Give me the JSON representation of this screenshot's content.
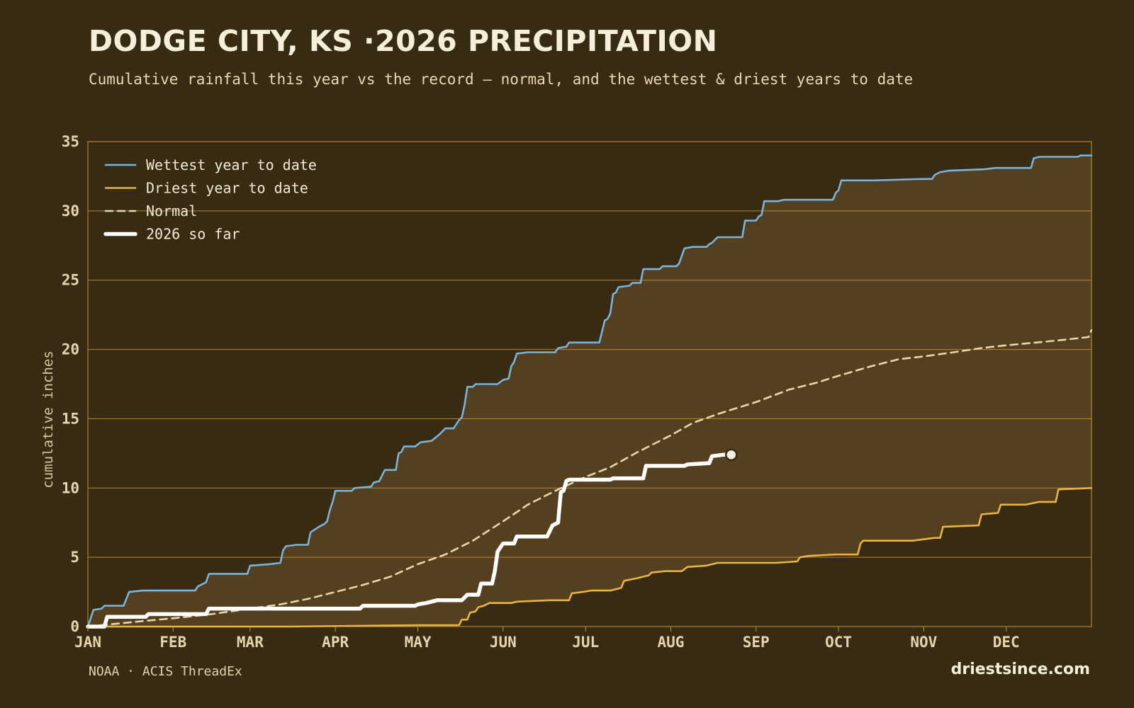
{
  "header": {
    "title": "DODGE CITY, KS ·2026 PRECIPITATION",
    "subtitle": "Cumulative rainfall this year vs the record — normal, and the wettest & driest years to date"
  },
  "footer": {
    "source": "NOAA · ACIS ThreadEx",
    "brand": "driestsince.com"
  },
  "colors": {
    "background": "#382b13",
    "band": "#54401f",
    "grid": "#c8962f",
    "wettest": "#78b4dc",
    "driest": "#e8b440",
    "normal": "#e6d6ae",
    "current": "#ffffff"
  },
  "chart_data": {
    "type": "line",
    "title": "DODGE CITY, KS ·2026 PRECIPITATION",
    "ylabel": "cumulative inches",
    "xlabel": "",
    "xlim": [
      0,
      365
    ],
    "ylim": [
      0,
      35
    ],
    "grid": true,
    "legend_position": "top-left",
    "x_ticks": [
      {
        "label": "JAN",
        "day": 0
      },
      {
        "label": "FEB",
        "day": 31
      },
      {
        "label": "MAR",
        "day": 59
      },
      {
        "label": "APR",
        "day": 90
      },
      {
        "label": "MAY",
        "day": 120
      },
      {
        "label": "JUN",
        "day": 151
      },
      {
        "label": "JUL",
        "day": 181
      },
      {
        "label": "AUG",
        "day": 212
      },
      {
        "label": "SEP",
        "day": 243
      },
      {
        "label": "OCT",
        "day": 273
      },
      {
        "label": "NOV",
        "day": 304
      },
      {
        "label": "DEC",
        "day": 334
      }
    ],
    "y_ticks": [
      0,
      5,
      10,
      15,
      20,
      25,
      30,
      35
    ],
    "series": [
      {
        "name": "Wettest year to date",
        "style": "solid",
        "color": "#78b4dc",
        "points": [
          [
            0,
            0
          ],
          [
            2,
            1.2
          ],
          [
            5,
            1.3
          ],
          [
            6,
            1.5
          ],
          [
            13,
            1.5
          ],
          [
            15,
            2.5
          ],
          [
            20,
            2.6
          ],
          [
            39,
            2.6
          ],
          [
            40,
            2.9
          ],
          [
            41,
            3.0
          ],
          [
            43,
            3.2
          ],
          [
            44,
            3.8
          ],
          [
            58,
            3.8
          ],
          [
            59,
            4.4
          ],
          [
            66,
            4.5
          ],
          [
            70,
            4.6
          ],
          [
            71,
            5.5
          ],
          [
            72,
            5.8
          ],
          [
            76,
            5.9
          ],
          [
            80,
            5.9
          ],
          [
            81,
            6.8
          ],
          [
            84,
            7.2
          ],
          [
            86,
            7.4
          ],
          [
            87,
            7.6
          ],
          [
            88,
            8.4
          ],
          [
            89,
            9.0
          ],
          [
            90,
            9.8
          ],
          [
            96,
            9.8
          ],
          [
            97,
            10.0
          ],
          [
            103,
            10.1
          ],
          [
            104,
            10.4
          ],
          [
            106,
            10.5
          ],
          [
            108,
            11.3
          ],
          [
            112,
            11.3
          ],
          [
            113,
            12.5
          ],
          [
            114,
            12.6
          ],
          [
            115,
            13.0
          ],
          [
            119,
            13.0
          ],
          [
            121,
            13.3
          ],
          [
            125,
            13.4
          ],
          [
            128,
            13.9
          ],
          [
            130,
            14.3
          ],
          [
            133,
            14.3
          ],
          [
            134,
            14.6
          ],
          [
            135,
            14.9
          ],
          [
            136,
            15.1
          ],
          [
            137,
            16.0
          ],
          [
            138,
            17.3
          ],
          [
            140,
            17.3
          ],
          [
            141,
            17.5
          ],
          [
            149,
            17.5
          ],
          [
            151,
            17.8
          ],
          [
            153,
            17.9
          ],
          [
            154,
            18.8
          ],
          [
            155,
            19.1
          ],
          [
            156,
            19.7
          ],
          [
            160,
            19.8
          ],
          [
            170,
            19.8
          ],
          [
            171,
            20.1
          ],
          [
            174,
            20.2
          ],
          [
            175,
            20.5
          ],
          [
            186,
            20.5
          ],
          [
            187,
            21.3
          ],
          [
            188,
            22.1
          ],
          [
            189,
            22.2
          ],
          [
            190,
            22.6
          ],
          [
            191,
            24.0
          ],
          [
            192,
            24.1
          ],
          [
            193,
            24.5
          ],
          [
            197,
            24.6
          ],
          [
            198,
            24.8
          ],
          [
            201,
            24.8
          ],
          [
            202,
            25.8
          ],
          [
            208,
            25.8
          ],
          [
            209,
            26.0
          ],
          [
            214,
            26.0
          ],
          [
            215,
            26.2
          ],
          [
            217,
            27.3
          ],
          [
            220,
            27.4
          ],
          [
            225,
            27.4
          ],
          [
            226,
            27.6
          ],
          [
            227,
            27.7
          ],
          [
            229,
            28.1
          ],
          [
            238,
            28.1
          ],
          [
            239,
            29.3
          ],
          [
            243,
            29.3
          ],
          [
            244,
            29.6
          ],
          [
            245,
            29.7
          ],
          [
            246,
            30.7
          ],
          [
            251,
            30.7
          ],
          [
            253,
            30.8
          ],
          [
            271,
            30.8
          ],
          [
            272,
            31.3
          ],
          [
            273,
            31.5
          ],
          [
            274,
            32.2
          ],
          [
            286,
            32.2
          ],
          [
            303,
            32.3
          ],
          [
            307,
            32.3
          ],
          [
            308,
            32.6
          ],
          [
            310,
            32.8
          ],
          [
            313,
            32.9
          ],
          [
            326,
            33.0
          ],
          [
            330,
            33.1
          ],
          [
            343,
            33.1
          ],
          [
            344,
            33.8
          ],
          [
            346,
            33.9
          ],
          [
            360,
            33.9
          ],
          [
            361,
            34.0
          ],
          [
            365,
            34.0
          ]
        ]
      },
      {
        "name": "Driest year to date",
        "style": "solid",
        "color": "#e8b440",
        "points": [
          [
            0,
            0
          ],
          [
            73,
            0
          ],
          [
            120,
            0.1
          ],
          [
            135,
            0.1
          ],
          [
            136,
            0.5
          ],
          [
            138,
            0.5
          ],
          [
            139,
            1.0
          ],
          [
            141,
            1.1
          ],
          [
            142,
            1.4
          ],
          [
            144,
            1.5
          ],
          [
            146,
            1.7
          ],
          [
            154,
            1.7
          ],
          [
            156,
            1.8
          ],
          [
            168,
            1.9
          ],
          [
            175,
            1.9
          ],
          [
            176,
            2.4
          ],
          [
            180,
            2.5
          ],
          [
            183,
            2.6
          ],
          [
            190,
            2.6
          ],
          [
            194,
            2.8
          ],
          [
            195,
            3.3
          ],
          [
            200,
            3.5
          ],
          [
            202,
            3.6
          ],
          [
            204,
            3.7
          ],
          [
            205,
            3.9
          ],
          [
            210,
            4.0
          ],
          [
            216,
            4.0
          ],
          [
            218,
            4.3
          ],
          [
            225,
            4.4
          ],
          [
            229,
            4.6
          ],
          [
            250,
            4.6
          ],
          [
            258,
            4.7
          ],
          [
            259,
            5.0
          ],
          [
            262,
            5.1
          ],
          [
            272,
            5.2
          ],
          [
            280,
            5.2
          ],
          [
            281,
            6.0
          ],
          [
            282,
            6.2
          ],
          [
            300,
            6.2
          ],
          [
            304,
            6.3
          ],
          [
            308,
            6.4
          ],
          [
            310,
            6.4
          ],
          [
            311,
            7.2
          ],
          [
            324,
            7.3
          ],
          [
            325,
            8.1
          ],
          [
            331,
            8.2
          ],
          [
            332,
            8.8
          ],
          [
            341,
            8.8
          ],
          [
            346,
            9.0
          ],
          [
            352,
            9.0
          ],
          [
            353,
            9.9
          ],
          [
            365,
            10.0
          ]
        ]
      },
      {
        "name": "Normal",
        "style": "dashed",
        "color": "#e6d6ae",
        "points": [
          [
            0,
            0
          ],
          [
            10,
            0.2
          ],
          [
            20,
            0.4
          ],
          [
            31,
            0.6
          ],
          [
            45,
            0.9
          ],
          [
            59,
            1.3
          ],
          [
            70,
            1.6
          ],
          [
            80,
            2.0
          ],
          [
            90,
            2.5
          ],
          [
            100,
            3.0
          ],
          [
            110,
            3.6
          ],
          [
            120,
            4.5
          ],
          [
            130,
            5.2
          ],
          [
            140,
            6.2
          ],
          [
            151,
            7.6
          ],
          [
            160,
            8.8
          ],
          [
            170,
            9.8
          ],
          [
            181,
            10.8
          ],
          [
            190,
            11.5
          ],
          [
            200,
            12.6
          ],
          [
            212,
            13.8
          ],
          [
            220,
            14.7
          ],
          [
            230,
            15.4
          ],
          [
            243,
            16.2
          ],
          [
            255,
            17.1
          ],
          [
            265,
            17.6
          ],
          [
            273,
            18.1
          ],
          [
            285,
            18.8
          ],
          [
            295,
            19.3
          ],
          [
            304,
            19.5
          ],
          [
            315,
            19.8
          ],
          [
            325,
            20.1
          ],
          [
            334,
            20.3
          ],
          [
            345,
            20.5
          ],
          [
            355,
            20.7
          ],
          [
            364,
            20.9
          ],
          [
            365,
            21.4
          ]
        ]
      },
      {
        "name": "2026 so far",
        "style": "bold",
        "color": "#ffffff",
        "points": [
          [
            0,
            0
          ],
          [
            6,
            0
          ],
          [
            7,
            0.7
          ],
          [
            21,
            0.7
          ],
          [
            22,
            0.9
          ],
          [
            43,
            0.9
          ],
          [
            44,
            1.3
          ],
          [
            99,
            1.3
          ],
          [
            100,
            1.5
          ],
          [
            119,
            1.5
          ],
          [
            120,
            1.6
          ],
          [
            123,
            1.7
          ],
          [
            125,
            1.8
          ],
          [
            127,
            1.9
          ],
          [
            136,
            1.9
          ],
          [
            138,
            2.3
          ],
          [
            142,
            2.3
          ],
          [
            143,
            3.1
          ],
          [
            147,
            3.1
          ],
          [
            148,
            4.0
          ],
          [
            149,
            5.4
          ],
          [
            150,
            5.7
          ],
          [
            151,
            6.0
          ],
          [
            155,
            6.0
          ],
          [
            156,
            6.5
          ],
          [
            167,
            6.5
          ],
          [
            169,
            7.3
          ],
          [
            171,
            7.5
          ],
          [
            172,
            9.7
          ],
          [
            173,
            9.8
          ],
          [
            174,
            10.5
          ],
          [
            175,
            10.6
          ],
          [
            190,
            10.6
          ],
          [
            191,
            10.7
          ],
          [
            202,
            10.7
          ],
          [
            203,
            11.6
          ],
          [
            217,
            11.6
          ],
          [
            218,
            11.7
          ],
          [
            226,
            11.8
          ],
          [
            227,
            12.3
          ],
          [
            231,
            12.4
          ],
          [
            234,
            12.4
          ]
        ]
      }
    ]
  }
}
